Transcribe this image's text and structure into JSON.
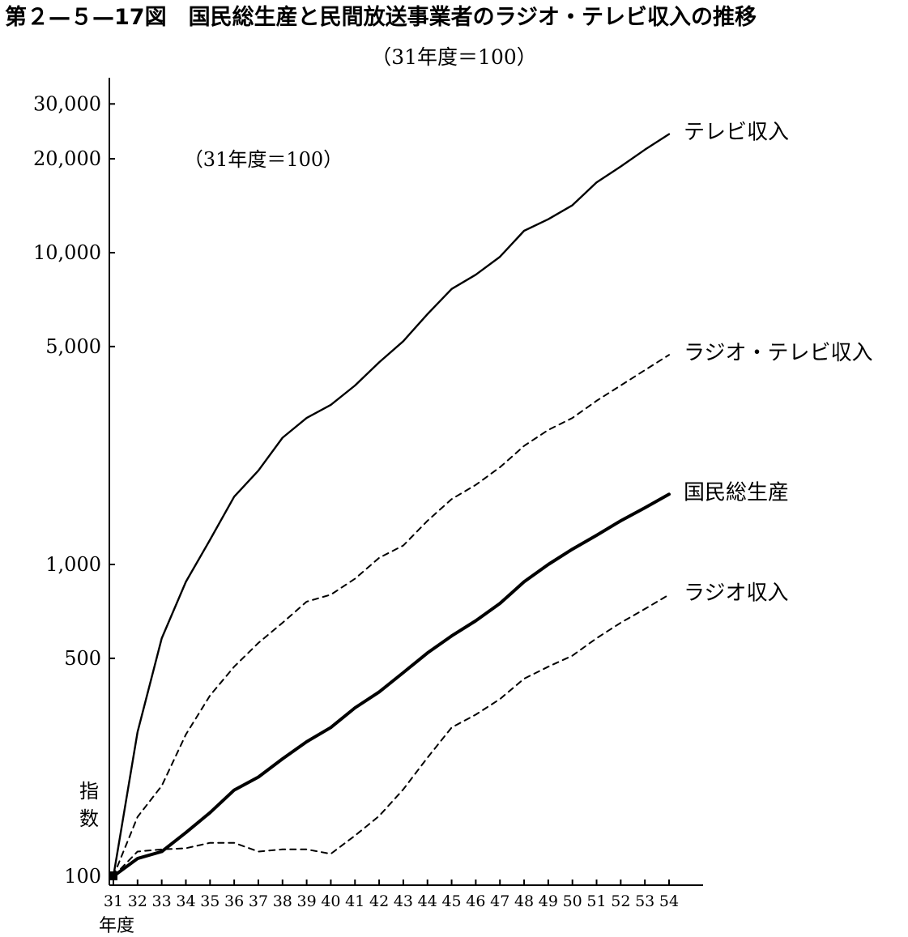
{
  "title": "第２—５—17図　国民総生産と民間放送事業者のラジオ・テレビ収入の推移",
  "subtitle": "（31年度＝100）",
  "chart_data": {
    "type": "line",
    "y_scale": "log",
    "ylabel": "指数",
    "xlabel": "年度",
    "annotation": "（31年度＝100）",
    "x": [
      31,
      32,
      33,
      34,
      35,
      36,
      37,
      38,
      39,
      40,
      41,
      42,
      43,
      44,
      45,
      46,
      47,
      48,
      49,
      50,
      51,
      52,
      53,
      54
    ],
    "x_tick_labels": [
      "31",
      "32",
      "33",
      "34",
      "35",
      "36",
      "37",
      "38",
      "39",
      "40",
      "41",
      "42",
      "43",
      "44",
      "45",
      "46",
      "47",
      "48",
      "49",
      "50",
      "51",
      "52",
      "53",
      "54"
    ],
    "y_ticks": [
      100,
      500,
      1000,
      5000,
      10000,
      20000,
      30000
    ],
    "y_tick_labels": [
      "100",
      "500",
      "1,000",
      "5,000",
      "10,000",
      "20,000",
      "30,000"
    ],
    "ylim": [
      100,
      45000
    ],
    "grid": false,
    "series": [
      {
        "name": "テレビ収入",
        "style": "solid",
        "values": [
          100,
          290,
          580,
          880,
          1200,
          1650,
          2000,
          2550,
          2950,
          3250,
          3750,
          4450,
          5200,
          6350,
          7650,
          8500,
          9700,
          11750,
          12800,
          14200,
          16800,
          18900,
          21400,
          24000
        ]
      },
      {
        "name": "ラジオ・テレビ収入",
        "style": "dashed",
        "values": [
          100,
          155,
          195,
          285,
          380,
          470,
          560,
          650,
          760,
          800,
          900,
          1050,
          1150,
          1380,
          1620,
          1800,
          2050,
          2400,
          2700,
          2950,
          3350,
          3750,
          4200,
          4700
        ]
      },
      {
        "name": "国民総生産",
        "style": "solid-bold",
        "values": [
          100,
          114,
          120,
          138,
          160,
          189,
          208,
          238,
          270,
          300,
          347,
          390,
          450,
          520,
          590,
          660,
          750,
          880,
          1000,
          1120,
          1240,
          1380,
          1520,
          1680
        ]
      },
      {
        "name": "ラジオ収入",
        "style": "dashed",
        "values": [
          100,
          120,
          122,
          123,
          128,
          128,
          120,
          122,
          122,
          118,
          135,
          156,
          190,
          240,
          300,
          330,
          370,
          430,
          470,
          510,
          580,
          650,
          720,
          800
        ]
      }
    ],
    "colors": {
      "line": "#000000",
      "axis": "#000000",
      "background": "#ffffff"
    }
  }
}
